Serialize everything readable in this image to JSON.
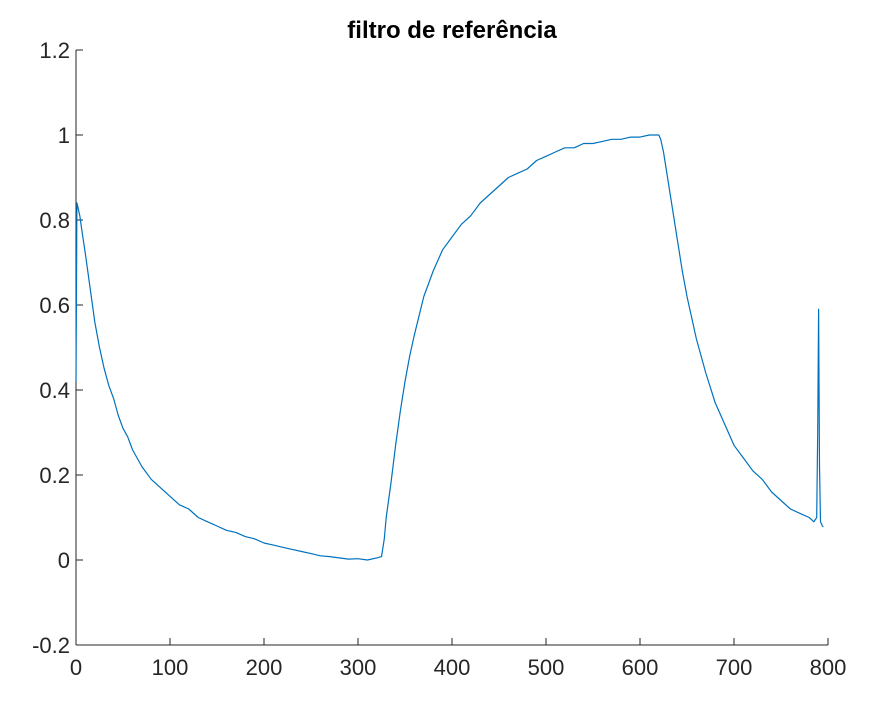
{
  "chart_data": {
    "type": "line",
    "title": "filtro de referência",
    "xlabel": "",
    "ylabel": "",
    "xlim": [
      0,
      800
    ],
    "ylim": [
      -0.2,
      1.2
    ],
    "xticks": [
      0,
      100,
      200,
      300,
      400,
      500,
      600,
      700,
      800
    ],
    "yticks": [
      -0.2,
      0,
      0.2,
      0.4,
      0.6,
      0.8,
      1,
      1.2
    ],
    "xtick_labels": [
      "0",
      "100",
      "200",
      "300",
      "400",
      "500",
      "600",
      "700",
      "800"
    ],
    "ytick_labels": [
      "-0.2",
      "0",
      "0.2",
      "0.4",
      "0.6",
      "0.8",
      "1",
      "1.2"
    ],
    "grid": false,
    "legend": "none",
    "line_color": "#0072BD",
    "series": [
      {
        "x": [
          0,
          1,
          2,
          4,
          6,
          8,
          10,
          15,
          20,
          25,
          30,
          35,
          40,
          45,
          50,
          55,
          60,
          70,
          80,
          90,
          100,
          110,
          120,
          130,
          140,
          150,
          160,
          170,
          180,
          190,
          200,
          210,
          220,
          230,
          240,
          250,
          260,
          270,
          280,
          290,
          300,
          310,
          320,
          325,
          328,
          330,
          335,
          340,
          345,
          350,
          355,
          360,
          370,
          380,
          390,
          400,
          410,
          420,
          430,
          440,
          450,
          460,
          470,
          480,
          490,
          500,
          510,
          520,
          530,
          540,
          550,
          560,
          570,
          580,
          590,
          600,
          610,
          615,
          620,
          622,
          625,
          630,
          635,
          640,
          645,
          650,
          660,
          670,
          680,
          690,
          700,
          710,
          720,
          730,
          740,
          750,
          760,
          770,
          780,
          785,
          788,
          789,
          790,
          791,
          792,
          794,
          795
        ],
        "y": [
          0.42,
          0.84,
          0.83,
          0.81,
          0.78,
          0.75,
          0.72,
          0.64,
          0.56,
          0.5,
          0.45,
          0.41,
          0.38,
          0.34,
          0.31,
          0.29,
          0.26,
          0.22,
          0.19,
          0.17,
          0.15,
          0.13,
          0.12,
          0.1,
          0.09,
          0.08,
          0.07,
          0.065,
          0.055,
          0.05,
          0.04,
          0.035,
          0.03,
          0.025,
          0.02,
          0.015,
          0.01,
          0.008,
          0.005,
          0.002,
          0.003,
          0.0,
          0.005,
          0.008,
          0.05,
          0.1,
          0.18,
          0.27,
          0.35,
          0.42,
          0.48,
          0.53,
          0.62,
          0.68,
          0.73,
          0.76,
          0.79,
          0.81,
          0.84,
          0.86,
          0.88,
          0.9,
          0.91,
          0.92,
          0.94,
          0.95,
          0.96,
          0.97,
          0.97,
          0.98,
          0.98,
          0.985,
          0.99,
          0.99,
          0.995,
          0.995,
          1.0,
          1.0,
          1.0,
          0.99,
          0.96,
          0.89,
          0.82,
          0.75,
          0.68,
          0.62,
          0.52,
          0.44,
          0.37,
          0.32,
          0.27,
          0.24,
          0.21,
          0.19,
          0.16,
          0.14,
          0.12,
          0.11,
          0.1,
          0.09,
          0.1,
          0.3,
          0.59,
          0.22,
          0.09,
          0.08,
          0.078
        ]
      }
    ]
  }
}
